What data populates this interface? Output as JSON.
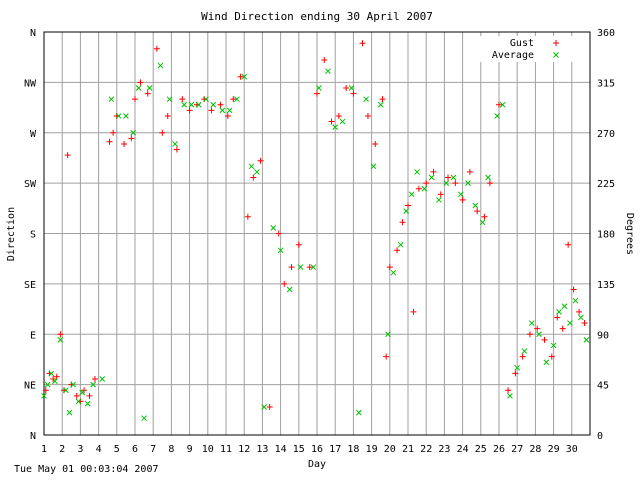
{
  "chart_data": {
    "type": "scatter",
    "title": "Wind Direction ending 30 April 2007",
    "xlabel": "Day",
    "ylabel_left": "Direction",
    "ylabel_right": "Degrees",
    "xlim": [
      1,
      31
    ],
    "ylim": [
      0,
      360
    ],
    "x_ticks": [
      "1",
      "2",
      "3",
      "4",
      "5",
      "6",
      "7",
      "8",
      "9",
      "10",
      "11",
      "12",
      "13",
      "14",
      "15",
      "16",
      "17",
      "18",
      "19",
      "20",
      "21",
      "22",
      "23",
      "24",
      "25",
      "26",
      "27",
      "28",
      "29",
      "30"
    ],
    "y_ticks_left": [
      "N",
      "NE",
      "E",
      "SE",
      "S",
      "SW",
      "W",
      "NW",
      "N"
    ],
    "y_ticks_right": [
      "0",
      "45",
      "90",
      "135",
      "180",
      "225",
      "270",
      "315",
      "360"
    ],
    "grid": true,
    "legend_position": "top-right",
    "colors": {
      "gust": "#ff0000",
      "average": "#00c000",
      "grid": "#a0a0a0",
      "frame": "#000000"
    },
    "series": [
      {
        "name": "Gust",
        "marker": "+",
        "color": "#ff0000",
        "points": [
          [
            1.1,
            40
          ],
          [
            1.3,
            55
          ],
          [
            1.5,
            50
          ],
          [
            1.7,
            52
          ],
          [
            1.9,
            90
          ],
          [
            2.1,
            40
          ],
          [
            2.3,
            250
          ],
          [
            2.5,
            45
          ],
          [
            2.8,
            35
          ],
          [
            3.0,
            30
          ],
          [
            3.2,
            40
          ],
          [
            3.5,
            35
          ],
          [
            3.8,
            50
          ],
          [
            4.6,
            262
          ],
          [
            4.8,
            270
          ],
          [
            5.0,
            285
          ],
          [
            5.4,
            260
          ],
          [
            5.8,
            265
          ],
          [
            6.0,
            300
          ],
          [
            6.3,
            315
          ],
          [
            6.7,
            305
          ],
          [
            7.2,
            345
          ],
          [
            7.5,
            270
          ],
          [
            7.8,
            285
          ],
          [
            8.3,
            255
          ],
          [
            8.6,
            300
          ],
          [
            9.0,
            290
          ],
          [
            9.4,
            295
          ],
          [
            9.8,
            300
          ],
          [
            10.2,
            290
          ],
          [
            10.7,
            295
          ],
          [
            11.1,
            285
          ],
          [
            11.4,
            300
          ],
          [
            11.8,
            320
          ],
          [
            12.2,
            195
          ],
          [
            12.5,
            230
          ],
          [
            12.9,
            245
          ],
          [
            13.4,
            25
          ],
          [
            13.9,
            180
          ],
          [
            14.2,
            135
          ],
          [
            14.6,
            150
          ],
          [
            15.0,
            170
          ],
          [
            15.6,
            150
          ],
          [
            16.0,
            305
          ],
          [
            16.4,
            335
          ],
          [
            16.8,
            280
          ],
          [
            17.2,
            285
          ],
          [
            17.6,
            310
          ],
          [
            18.0,
            305
          ],
          [
            18.5,
            350
          ],
          [
            18.8,
            285
          ],
          [
            19.2,
            260
          ],
          [
            19.6,
            300
          ],
          [
            19.8,
            70
          ],
          [
            20.0,
            150
          ],
          [
            20.4,
            165
          ],
          [
            20.7,
            190
          ],
          [
            21.0,
            205
          ],
          [
            21.3,
            110
          ],
          [
            21.6,
            220
          ],
          [
            22.0,
            225
          ],
          [
            22.4,
            235
          ],
          [
            22.8,
            215
          ],
          [
            23.2,
            230
          ],
          [
            23.6,
            225
          ],
          [
            24.0,
            210
          ],
          [
            24.4,
            235
          ],
          [
            24.8,
            200
          ],
          [
            25.2,
            195
          ],
          [
            25.5,
            225
          ],
          [
            26.0,
            295
          ],
          [
            26.5,
            40
          ],
          [
            26.9,
            55
          ],
          [
            27.3,
            70
          ],
          [
            27.7,
            90
          ],
          [
            28.1,
            95
          ],
          [
            28.5,
            85
          ],
          [
            28.9,
            70
          ],
          [
            29.2,
            105
          ],
          [
            29.5,
            95
          ],
          [
            29.8,
            170
          ],
          [
            30.1,
            130
          ],
          [
            30.4,
            110
          ],
          [
            30.7,
            100
          ]
        ]
      },
      {
        "name": "Average",
        "marker": "x",
        "color": "#00c000",
        "points": [
          [
            1.0,
            35
          ],
          [
            1.2,
            45
          ],
          [
            1.4,
            55
          ],
          [
            1.6,
            48
          ],
          [
            1.9,
            85
          ],
          [
            2.2,
            40
          ],
          [
            2.4,
            20
          ],
          [
            2.6,
            45
          ],
          [
            2.9,
            30
          ],
          [
            3.1,
            38
          ],
          [
            3.4,
            28
          ],
          [
            3.7,
            45
          ],
          [
            4.2,
            50
          ],
          [
            4.7,
            300
          ],
          [
            5.1,
            285
          ],
          [
            5.5,
            285
          ],
          [
            5.9,
            270
          ],
          [
            6.2,
            310
          ],
          [
            6.5,
            15
          ],
          [
            6.8,
            310
          ],
          [
            7.4,
            330
          ],
          [
            7.9,
            300
          ],
          [
            8.2,
            260
          ],
          [
            8.7,
            295
          ],
          [
            9.1,
            295
          ],
          [
            9.5,
            295
          ],
          [
            9.9,
            300
          ],
          [
            10.3,
            295
          ],
          [
            10.8,
            290
          ],
          [
            11.2,
            290
          ],
          [
            11.6,
            300
          ],
          [
            12.0,
            320
          ],
          [
            12.4,
            240
          ],
          [
            12.7,
            235
          ],
          [
            13.1,
            25
          ],
          [
            13.6,
            185
          ],
          [
            14.0,
            165
          ],
          [
            14.5,
            130
          ],
          [
            15.1,
            150
          ],
          [
            15.8,
            150
          ],
          [
            16.1,
            310
          ],
          [
            16.6,
            325
          ],
          [
            17.0,
            275
          ],
          [
            17.4,
            280
          ],
          [
            17.9,
            310
          ],
          [
            18.3,
            20
          ],
          [
            18.7,
            300
          ],
          [
            19.1,
            240
          ],
          [
            19.5,
            295
          ],
          [
            19.9,
            90
          ],
          [
            20.2,
            145
          ],
          [
            20.6,
            170
          ],
          [
            20.9,
            200
          ],
          [
            21.2,
            215
          ],
          [
            21.5,
            235
          ],
          [
            21.9,
            220
          ],
          [
            22.3,
            230
          ],
          [
            22.7,
            210
          ],
          [
            23.1,
            225
          ],
          [
            23.5,
            230
          ],
          [
            23.9,
            215
          ],
          [
            24.3,
            225
          ],
          [
            24.7,
            205
          ],
          [
            25.1,
            190
          ],
          [
            25.4,
            230
          ],
          [
            25.9,
            285
          ],
          [
            26.2,
            295
          ],
          [
            26.6,
            35
          ],
          [
            27.0,
            60
          ],
          [
            27.4,
            75
          ],
          [
            27.8,
            100
          ],
          [
            28.2,
            90
          ],
          [
            28.6,
            65
          ],
          [
            29.0,
            80
          ],
          [
            29.3,
            110
          ],
          [
            29.6,
            115
          ],
          [
            29.9,
            100
          ],
          [
            30.2,
            120
          ],
          [
            30.5,
            105
          ],
          [
            30.8,
            85
          ]
        ]
      }
    ]
  },
  "footer": {
    "timestamp": "Tue May 01 00:03:04 2007"
  }
}
